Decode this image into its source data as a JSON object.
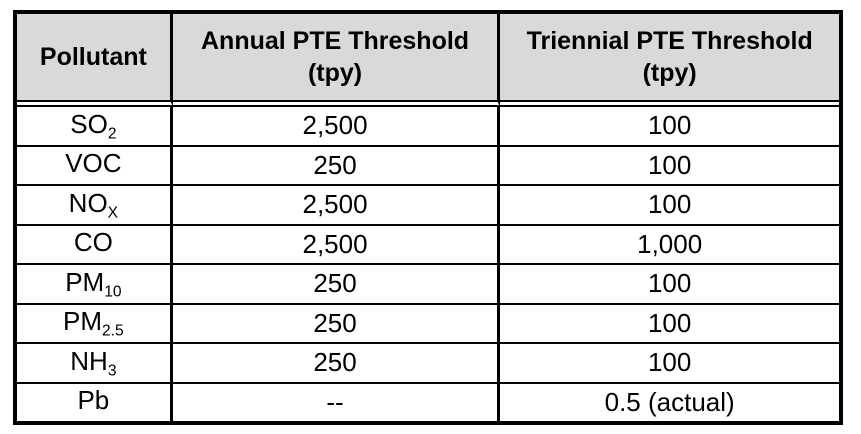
{
  "table": {
    "headers": {
      "pollutant": "Pollutant",
      "annual": {
        "line1": "Annual PTE Threshold",
        "line2": "(tpy)"
      },
      "triennial": {
        "line1": "Triennial PTE Threshold",
        "line2": "(tpy)"
      }
    },
    "rows": [
      {
        "name": "SO",
        "sub": "2",
        "annual": "2,500",
        "triennial": "100"
      },
      {
        "name": "VOC",
        "sub": "",
        "annual": "250",
        "triennial": "100"
      },
      {
        "name": "NO",
        "sub": "X",
        "annual": "2,500",
        "triennial": "100"
      },
      {
        "name": "CO",
        "sub": "",
        "annual": "2,500",
        "triennial": "1,000"
      },
      {
        "name": "PM",
        "sub": "10",
        "annual": "250",
        "triennial": "100"
      },
      {
        "name": "PM",
        "sub": "2.5",
        "annual": "250",
        "triennial": "100"
      },
      {
        "name": "NH",
        "sub": "3",
        "annual": "250",
        "triennial": "100"
      },
      {
        "name": "Pb",
        "sub": "",
        "annual": "--",
        "triennial": "0.5 (actual)"
      }
    ],
    "colors": {
      "header_bg": "#d9d9d9",
      "border": "#000000",
      "text": "#000000",
      "row_bg": "#ffffff"
    }
  }
}
